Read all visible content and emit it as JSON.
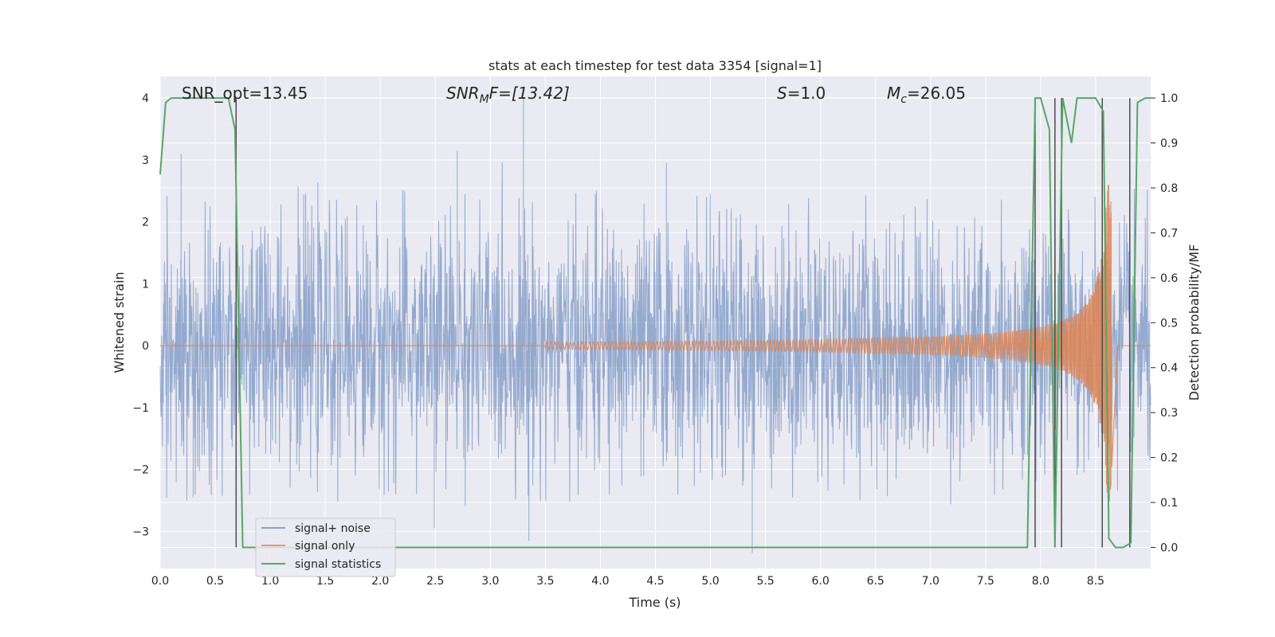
{
  "chart_data": {
    "type": "line",
    "title": "stats at each timestep for test data 3354 [signal=1]",
    "xlabel": "Time (s)",
    "ylabel": "Whitened strain",
    "ylabel_right": "Detection probability/MF",
    "xlim": [
      0.0,
      9.0
    ],
    "ylim": [
      -3.6,
      4.35
    ],
    "ylim_right": [
      -0.047,
      1.048
    ],
    "x_ticks": [
      "0.0",
      "0.5",
      "1.0",
      "1.5",
      "2.0",
      "2.5",
      "3.0",
      "3.5",
      "4.0",
      "4.5",
      "5.0",
      "5.5",
      "6.0",
      "6.5",
      "7.0",
      "7.5",
      "8.0",
      "8.5"
    ],
    "y_ticks": [
      "4",
      "3",
      "2",
      "1",
      "0",
      "−1",
      "−2",
      "−3"
    ],
    "y_ticks_right": [
      "1.0",
      "0.9",
      "0.8",
      "0.7",
      "0.6",
      "0.5",
      "0.4",
      "0.3",
      "0.2",
      "0.1",
      "0.0"
    ],
    "grid": true,
    "legend_position": "lower-left",
    "colors": {
      "background": "#eaeaf2",
      "grid": "#ffffff",
      "noise": "#4c72b0",
      "signal": "#dd8452",
      "stats": "#55a868",
      "vlines": "#4d4d4d"
    },
    "annotations": {
      "snr_opt": "SNR_opt=13.45",
      "snr_mf_prefix": "SNR",
      "snr_mf_sub": "M",
      "snr_mf_suffix": "F=[13.42]",
      "s_label": "S",
      "s_value": "=1.0",
      "mc_label": "M",
      "mc_sub": "c",
      "mc_value": "=26.05"
    },
    "series": [
      {
        "name": "signal+ noise",
        "kind": "noise",
        "typical_range": [
          -1.8,
          1.8
        ],
        "notable_peaks": [
          {
            "x": 0.19,
            "y": 3.1
          },
          {
            "x": 3.3,
            "y": 4.0
          },
          {
            "x": 2.7,
            "y": 3.15
          },
          {
            "x": 4.6,
            "y": 2.95
          },
          {
            "x": 2.49,
            "y": -2.95
          },
          {
            "x": 3.35,
            "y": -3.15
          },
          {
            "x": 5.38,
            "y": -3.35
          },
          {
            "x": 0.3,
            "y": -2.45
          }
        ]
      },
      {
        "name": "signal only",
        "kind": "chirp",
        "start_x": 3.5,
        "peak_x": 8.63,
        "peak_amplitude": 2.6,
        "end_x": 8.7
      },
      {
        "name": "signal statistics",
        "kind": "step",
        "x": [
          0.0,
          0.05,
          0.1,
          0.55,
          0.62,
          0.68,
          0.75,
          7.88,
          7.95,
          8.0,
          8.08,
          8.13,
          8.2,
          8.28,
          8.33,
          8.4,
          8.5,
          8.57,
          8.62,
          8.68,
          8.75,
          8.82,
          8.88,
          8.95,
          9.0
        ],
        "y": [
          0.83,
          0.99,
          1.0,
          1.0,
          1.0,
          0.93,
          0.0,
          0.0,
          1.0,
          1.0,
          0.93,
          0.0,
          1.0,
          0.9,
          1.0,
          1.0,
          1.0,
          0.97,
          0.02,
          0.0,
          0.0,
          0.01,
          0.99,
          1.0,
          1.0
        ]
      }
    ],
    "vertical_lines_x": [
      0.69,
      7.95,
      8.13,
      8.19,
      8.56,
      8.81
    ]
  }
}
